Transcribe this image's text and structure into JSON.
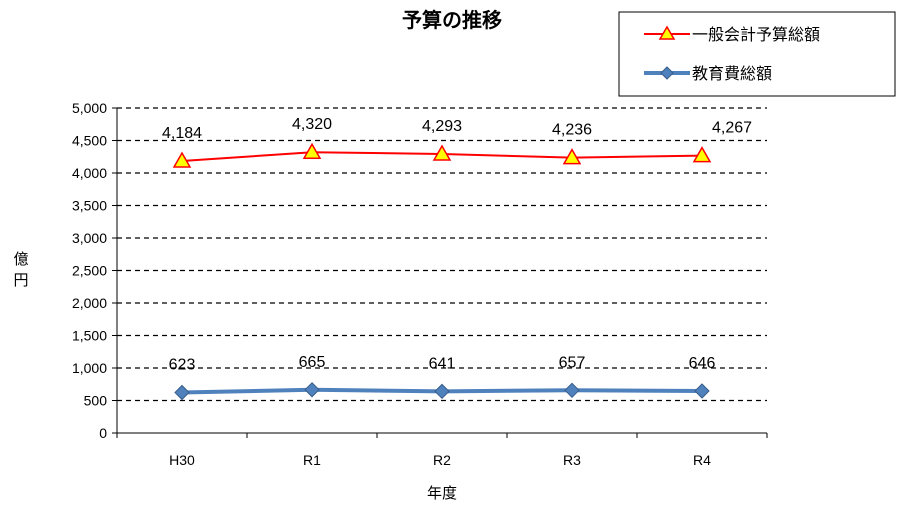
{
  "chart_data": {
    "type": "line",
    "title": "予算の推移",
    "xlabel": "年度",
    "ylabel": "億円",
    "categories": [
      "H30",
      "R1",
      "R2",
      "R3",
      "R4"
    ],
    "ylim": [
      0,
      5000
    ],
    "yticks": [
      0,
      500,
      1000,
      1500,
      2000,
      2500,
      3000,
      3500,
      4000,
      4500,
      5000
    ],
    "ytick_labels": [
      "0",
      "500",
      "1,000",
      "1,500",
      "2,000",
      "2,500",
      "3,000",
      "3,500",
      "4,000",
      "4,500",
      "5,000"
    ],
    "grid": "dashed horizontal",
    "legend_position": "top-right",
    "series": [
      {
        "name": "一般会計予算総額",
        "values": [
          4184,
          4320,
          4293,
          4236,
          4267
        ],
        "value_labels": [
          "4,184",
          "4,320",
          "4,293",
          "4,236",
          "4,267"
        ],
        "line_color": "#ff0000",
        "marker": "triangle",
        "marker_fill": "#ffff00",
        "marker_stroke": "#ff0000"
      },
      {
        "name": "教育費総額",
        "values": [
          623,
          665,
          641,
          657,
          646
        ],
        "value_labels": [
          "623",
          "665",
          "641",
          "657",
          "646"
        ],
        "line_color": "#4f81bd",
        "marker": "diamond",
        "marker_fill": "#4f81bd",
        "marker_stroke": "#385d8a"
      }
    ]
  }
}
